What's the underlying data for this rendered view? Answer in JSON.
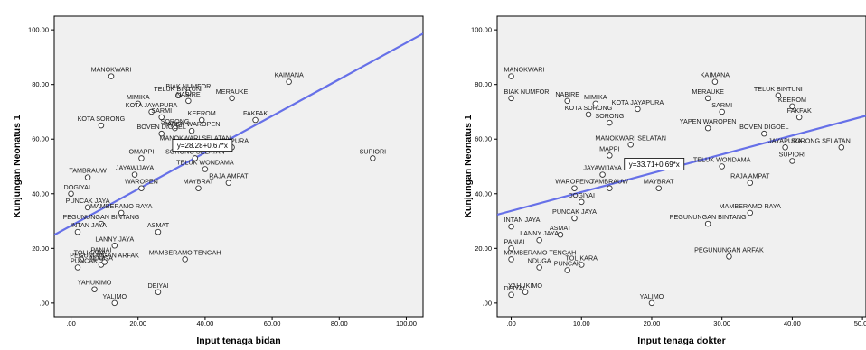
{
  "chart_data": [
    {
      "type": "scatter",
      "xlabel": "Input tenaga bidan",
      "ylabel": "Kunjungan Neonatus 1",
      "xlim": [
        -5,
        105
      ],
      "ylim": [
        -5,
        105
      ],
      "xticks": [
        ".00",
        "20.00",
        "40.00",
        "60.00",
        "80.00",
        "100.00"
      ],
      "yticks": [
        ".00",
        "20.00",
        "40.00",
        "60.00",
        "80.00",
        "100.00"
      ],
      "grid": false,
      "fit_line": {
        "intercept": 28.28,
        "slope": 0.67
      },
      "equation_label": "y=28.28+0.67*x",
      "points": [
        {
          "label": "MANOKWARI",
          "x": 12,
          "y": 83
        },
        {
          "label": "KAIMANA",
          "x": 65,
          "y": 81
        },
        {
          "label": "BIAK NUMFOR",
          "x": 35,
          "y": 77
        },
        {
          "label": "TELUK BINTUNI",
          "x": 32,
          "y": 76
        },
        {
          "label": "MERAUKE",
          "x": 48,
          "y": 75
        },
        {
          "label": "NABIRE",
          "x": 35,
          "y": 74
        },
        {
          "label": "MIMIKA",
          "x": 20,
          "y": 73
        },
        {
          "label": "KOTA JAYAPURA",
          "x": 24,
          "y": 70
        },
        {
          "label": "SARMI",
          "x": 27,
          "y": 68
        },
        {
          "label": "KEEROM",
          "x": 39,
          "y": 67
        },
        {
          "label": "FAKFAK",
          "x": 55,
          "y": 67
        },
        {
          "label": "KOTA SORONG",
          "x": 9,
          "y": 65
        },
        {
          "label": "SORONG",
          "x": 31,
          "y": 64
        },
        {
          "label": "YAPEN WAROPEN",
          "x": 36,
          "y": 63
        },
        {
          "label": "BOVEN DIGOEL",
          "x": 27,
          "y": 62
        },
        {
          "label": "MANOKWARI SELATAN",
          "x": 37,
          "y": 58
        },
        {
          "label": "JAYAPURA",
          "x": 48,
          "y": 57
        },
        {
          "label": "OMAPPI",
          "x": 21,
          "y": 53
        },
        {
          "label": "SORONG SELATAN",
          "x": 37,
          "y": 53
        },
        {
          "label": "SUPIORI",
          "x": 90,
          "y": 53
        },
        {
          "label": "TELUK WONDAMA",
          "x": 40,
          "y": 49
        },
        {
          "label": "JAYAWIJAYA",
          "x": 19,
          "y": 47
        },
        {
          "label": "TAMBRAUW",
          "x": 5,
          "y": 46
        },
        {
          "label": "RAJA AMPAT",
          "x": 47,
          "y": 44
        },
        {
          "label": "MAYBRAT",
          "x": 38,
          "y": 42
        },
        {
          "label": "WAROPEN",
          "x": 21,
          "y": 42
        },
        {
          "label": "DOGIYAI",
          "x": 0,
          "y": 40
        },
        {
          "label": "PUNCAK JAYA",
          "x": 5,
          "y": 35
        },
        {
          "label": "MAMBERAMO RAYA",
          "x": 15,
          "y": 33
        },
        {
          "label": "PEGUNUNGAN BINTANG",
          "x": 9,
          "y": 29
        },
        {
          "label": "ASMAT",
          "x": 26,
          "y": 26
        },
        {
          "label": "INTAN JAYA",
          "x": 2,
          "y": 26
        },
        {
          "label": "LANNY JAYA",
          "x": 13,
          "y": 21
        },
        {
          "label": "PANIAI",
          "x": 9,
          "y": 17
        },
        {
          "label": "TOLIKARA",
          "x": 3,
          "y": 16
        },
        {
          "label": "MAMBERAMO TENGAH",
          "x": 34,
          "y": 16
        },
        {
          "label": "PUNCAK",
          "x": 2,
          "y": 13
        },
        {
          "label": "NDUGA",
          "x": 9,
          "y": 14
        },
        {
          "label": "PEGUNUNGAN ARFAK",
          "x": 10,
          "y": 15
        },
        {
          "label": "YAHUKIMO",
          "x": 7,
          "y": 5
        },
        {
          "label": "DEIYAI",
          "x": 26,
          "y": 4
        },
        {
          "label": "YALIMO",
          "x": 13,
          "y": 0
        }
      ]
    },
    {
      "type": "scatter",
      "xlabel": "Input tenaga dokter",
      "ylabel": "Kunjungan Neonatus 1",
      "xlim": [
        -2,
        50.5
      ],
      "ylim": [
        -5,
        105
      ],
      "xticks": [
        ".00",
        "10.00",
        "20.00",
        "30.00",
        "40.00",
        "50.00"
      ],
      "yticks": [
        ".00",
        "20.00",
        "40.00",
        "60.00",
        "80.00",
        "100.00"
      ],
      "grid": false,
      "fit_line": {
        "intercept": 33.71,
        "slope": 0.69
      },
      "equation_label": "y=33.71+0.69*x",
      "points": [
        {
          "label": "MANOKWARI",
          "x": 0,
          "y": 83
        },
        {
          "label": "KAIMANA",
          "x": 29,
          "y": 81
        },
        {
          "label": "BIAK NUMFOR",
          "x": 0,
          "y": 75
        },
        {
          "label": "NABIRE",
          "x": 8,
          "y": 74
        },
        {
          "label": "MIMIKA",
          "x": 12,
          "y": 73
        },
        {
          "label": "MERAUKE",
          "x": 28,
          "y": 75
        },
        {
          "label": "TELUK BINTUNI",
          "x": 38,
          "y": 76
        },
        {
          "label": "KEEROM",
          "x": 40,
          "y": 72
        },
        {
          "label": "SARMI",
          "x": 30,
          "y": 70
        },
        {
          "label": "FAKFAK",
          "x": 41,
          "y": 68
        },
        {
          "label": "KOTA SORONG",
          "x": 11,
          "y": 69
        },
        {
          "label": "KOTA JAYAPURA",
          "x": 18,
          "y": 71
        },
        {
          "label": "SORONG",
          "x": 14,
          "y": 66
        },
        {
          "label": "YAPEN WAROPEN",
          "x": 28,
          "y": 64
        },
        {
          "label": "BOVEN DIGOEL",
          "x": 36,
          "y": 62
        },
        {
          "label": "SORONG SELATAN",
          "x": 47,
          "y": 57
        },
        {
          "label": "MANOKWARI SELATAN",
          "x": 17,
          "y": 58
        },
        {
          "label": "JAYAPURA",
          "x": 39,
          "y": 57
        },
        {
          "label": "MAPPI",
          "x": 14,
          "y": 54
        },
        {
          "label": "SUPIORI",
          "x": 40,
          "y": 52
        },
        {
          "label": "TELUK WONDAMA",
          "x": 30,
          "y": 50
        },
        {
          "label": "JAYAWIJAYA",
          "x": 13,
          "y": 47
        },
        {
          "label": "RAJA AMPAT",
          "x": 34,
          "y": 44
        },
        {
          "label": "MAYBRAT",
          "x": 21,
          "y": 42
        },
        {
          "label": "WAROPENO",
          "x": 9,
          "y": 42
        },
        {
          "label": "TAMBRAUW",
          "x": 14,
          "y": 42
        },
        {
          "label": "DOGIYAI",
          "x": 10,
          "y": 37
        },
        {
          "label": "MAMBERAMO RAYA",
          "x": 34,
          "y": 33
        },
        {
          "label": "PUNCAK JAYA",
          "x": 9,
          "y": 31
        },
        {
          "label": "PEGUNUNGAN BINTANG",
          "x": 28,
          "y": 29
        },
        {
          "label": "INTAN JAYA",
          "x": 0,
          "y": 28
        },
        {
          "label": "ASMAT",
          "x": 7,
          "y": 25
        },
        {
          "label": "LANNY JAYA",
          "x": 4,
          "y": 23
        },
        {
          "label": "PANIAI",
          "x": 0,
          "y": 20
        },
        {
          "label": "MAMBERAMO TENGAH",
          "x": 0,
          "y": 16
        },
        {
          "label": "PEGUNUNGAN ARFAK",
          "x": 31,
          "y": 17
        },
        {
          "label": "TOLIKARA",
          "x": 10,
          "y": 14
        },
        {
          "label": "NDUGA",
          "x": 4,
          "y": 13
        },
        {
          "label": "PUNCAK",
          "x": 8,
          "y": 12
        },
        {
          "label": "YAHUKIMO",
          "x": 2,
          "y": 4
        },
        {
          "label": "DEIYAI",
          "x": 0,
          "y": 3
        },
        {
          "label": "YALIMO",
          "x": 20,
          "y": 0
        }
      ]
    }
  ]
}
